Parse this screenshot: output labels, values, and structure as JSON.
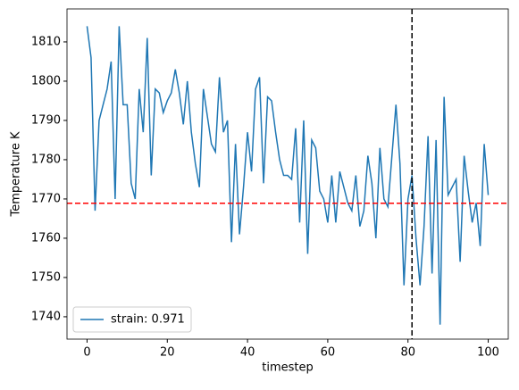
{
  "chart_data": {
    "type": "line",
    "xlabel": "timestep",
    "ylabel": "Temperature K",
    "x": [
      0,
      1,
      2,
      3,
      4,
      5,
      6,
      7,
      8,
      9,
      10,
      11,
      12,
      13,
      14,
      15,
      16,
      17,
      18,
      19,
      20,
      21,
      22,
      23,
      24,
      25,
      26,
      27,
      28,
      29,
      30,
      31,
      32,
      33,
      34,
      35,
      36,
      37,
      38,
      39,
      40,
      41,
      42,
      43,
      44,
      45,
      46,
      47,
      48,
      49,
      50,
      51,
      52,
      53,
      54,
      55,
      56,
      57,
      58,
      59,
      60,
      61,
      62,
      63,
      64,
      65,
      66,
      67,
      68,
      69,
      70,
      71,
      72,
      73,
      74,
      75,
      76,
      77,
      78,
      79,
      80,
      81,
      82,
      83,
      84,
      85,
      86,
      87,
      88,
      89,
      90,
      91,
      92,
      93,
      94,
      95,
      96,
      97,
      98,
      99,
      100
    ],
    "series": [
      {
        "name": "strain: 0.971",
        "color": "#1f77b4",
        "values": [
          1814,
          1806,
          1767,
          1790,
          1794,
          1798,
          1805,
          1770,
          1814,
          1794,
          1794,
          1774,
          1770,
          1798,
          1787,
          1811,
          1776,
          1798,
          1797,
          1792,
          1795,
          1797,
          1803,
          1797,
          1789,
          1800,
          1787,
          1779,
          1773,
          1798,
          1791,
          1784,
          1782,
          1801,
          1787,
          1790,
          1759,
          1784,
          1761,
          1773,
          1787,
          1777,
          1798,
          1801,
          1774,
          1796,
          1795,
          1787,
          1780,
          1776,
          1776,
          1775,
          1788,
          1764,
          1790,
          1756,
          1785,
          1783,
          1772,
          1770,
          1764,
          1776,
          1764,
          1777,
          1773,
          1769,
          1767,
          1776,
          1763,
          1767,
          1781,
          1774,
          1760,
          1783,
          1770,
          1768,
          1781,
          1794,
          1779,
          1748,
          1770,
          1776,
          1760,
          1748,
          1763,
          1786,
          1751,
          1785,
          1738,
          1796,
          1771,
          1773,
          1775,
          1754,
          1781,
          1772,
          1764,
          1769,
          1758,
          1784,
          1771
        ]
      }
    ],
    "hline": {
      "value": 1768.9,
      "color": "#ff0000"
    },
    "vline": {
      "value": 81,
      "color": "#000000"
    },
    "xlim": [
      -5,
      105
    ],
    "ylim": [
      1734.3,
      1818.4
    ],
    "xticks": [
      0,
      20,
      40,
      60,
      80,
      100
    ],
    "yticks": [
      1740,
      1750,
      1760,
      1770,
      1780,
      1790,
      1800,
      1810
    ],
    "legend": "lower left"
  }
}
